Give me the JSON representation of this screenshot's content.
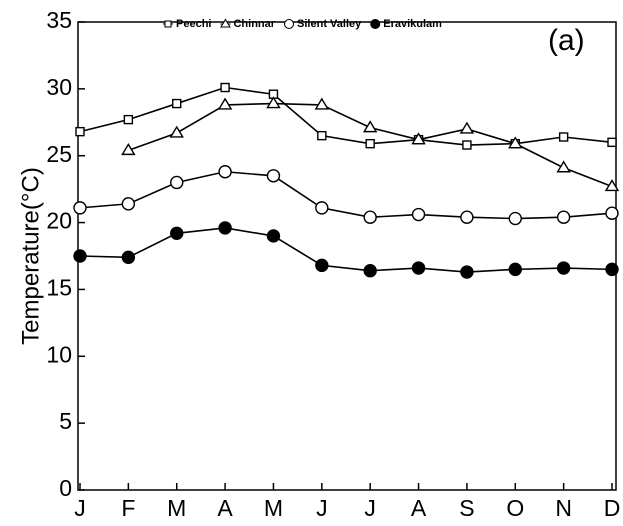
{
  "chart_data": {
    "type": "line",
    "y_label": "Temperature(°C)",
    "annotation": "(a)",
    "categories": [
      "J",
      "F",
      "M",
      "A",
      "M",
      "J",
      "J",
      "A",
      "S",
      "O",
      "N",
      "D"
    ],
    "series": [
      {
        "name": "Peechi",
        "color": "#000000",
        "marker": "square",
        "values": [
          26.8,
          27.7,
          28.9,
          30.1,
          29.6,
          26.5,
          25.9,
          26.2,
          25.8,
          25.9,
          26.4,
          26.0
        ]
      },
      {
        "name": "Chinnar",
        "color": "#000000",
        "marker": "triangle",
        "values": [
          null,
          25.4,
          26.7,
          28.8,
          28.9,
          28.8,
          27.1,
          26.2,
          27.0,
          25.9,
          24.1,
          22.7
        ]
      },
      {
        "name": "Silent Valley",
        "color": "#000000",
        "marker": "circle",
        "values": [
          21.1,
          21.4,
          23.0,
          23.8,
          23.5,
          21.1,
          20.4,
          20.6,
          20.4,
          20.3,
          20.4,
          20.7
        ]
      },
      {
        "name": "Eravikulam",
        "color": "#000000",
        "marker": "filled-circle",
        "values": [
          17.5,
          17.4,
          19.2,
          19.6,
          19.0,
          16.8,
          16.4,
          16.6,
          16.3,
          16.5,
          16.6,
          16.5
        ]
      }
    ],
    "ylim": [
      0,
      35
    ],
    "yticks": [
      0,
      5,
      10,
      15,
      20,
      25,
      30,
      35
    ],
    "grid": false
  }
}
